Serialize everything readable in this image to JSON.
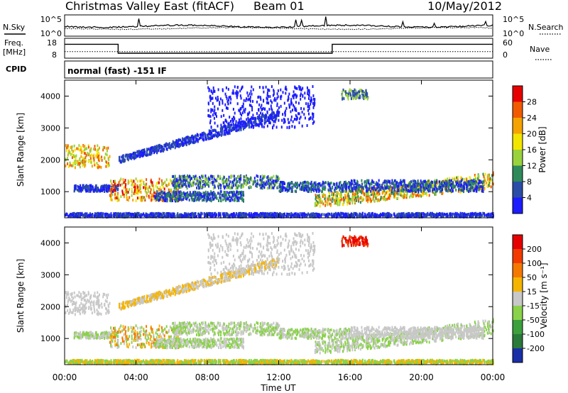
{
  "header": {
    "title": "Christmas Valley East (fitACF)",
    "beam": "Beam 01",
    "date": "10/May/2012"
  },
  "noise_panel": {
    "left_label": "N.Sky",
    "right_label": "N.Search",
    "left_ticks": [
      "10^5",
      "10^0"
    ],
    "right_ticks": [
      "10^5",
      "10^0"
    ]
  },
  "freq_panel": {
    "left_label_1": "Freq.",
    "left_label_2": "[MHz]",
    "right_label": "Nave",
    "left_ticks": [
      "18",
      "8"
    ],
    "right_ticks": [
      "60",
      "0"
    ]
  },
  "cpid_panel": {
    "label": "CPID",
    "text": "normal (fast) -151 IF"
  },
  "chart_data": [
    {
      "type": "line",
      "panel": "noise",
      "series": [
        {
          "name": "N.Sky",
          "note": "noise sky level, log scale"
        },
        {
          "name": "N.Search",
          "note": "noise search level, log scale, dotted"
        }
      ],
      "ylim_left": [
        "10^0",
        "10^5"
      ],
      "ylim_right": [
        "10^0",
        "10^5"
      ]
    },
    {
      "type": "line",
      "panel": "frequency",
      "x_hours": [
        0,
        3,
        3,
        15,
        15,
        24
      ],
      "freq_mhz": [
        15,
        15,
        10.5,
        10.5,
        15,
        15
      ],
      "nave": [
        20,
        20,
        20,
        20,
        20,
        20
      ],
      "ylim_left": [
        8,
        18
      ],
      "ylim_right": [
        0,
        60
      ]
    },
    {
      "type": "heatmap",
      "panel": "power",
      "ylabel": "Slant Range [km]",
      "yticks": [
        "1000",
        "2000",
        "3000",
        "4000"
      ],
      "ylim": [
        180,
        4500
      ],
      "colorbar_label": "Power [dB]",
      "colorbar_ticks": [
        "4",
        "8",
        "12",
        "16",
        "20",
        "24",
        "28"
      ],
      "colorbar_colors": [
        "#1c1cff",
        "#2a4ea8",
        "#2e8a5a",
        "#9ad23c",
        "#f2e600",
        "#f5a300",
        "#f25a00",
        "#e60000"
      ]
    },
    {
      "type": "heatmap",
      "panel": "velocity",
      "ylabel": "Slant Range [km]",
      "yticks": [
        "1000",
        "2000",
        "3000",
        "4000"
      ],
      "ylim": [
        180,
        4500
      ],
      "colorbar_label": "Velocity [m s⁻¹]",
      "colorbar_ticks": [
        "200",
        "100",
        "50",
        "15",
        "-15",
        "-50",
        "-100",
        "-200"
      ],
      "colorbar_colors": [
        "#1a2ea8",
        "#2a7a3a",
        "#3ca03c",
        "#8ad24a",
        "#c8c8c8",
        "#f5b400",
        "#f57800",
        "#f23a00",
        "#e60000"
      ]
    }
  ],
  "x_axis": {
    "label": "Time UT",
    "ticks": [
      "00:00",
      "04:00",
      "08:00",
      "12:00",
      "16:00",
      "20:00",
      "00:00"
    ]
  }
}
